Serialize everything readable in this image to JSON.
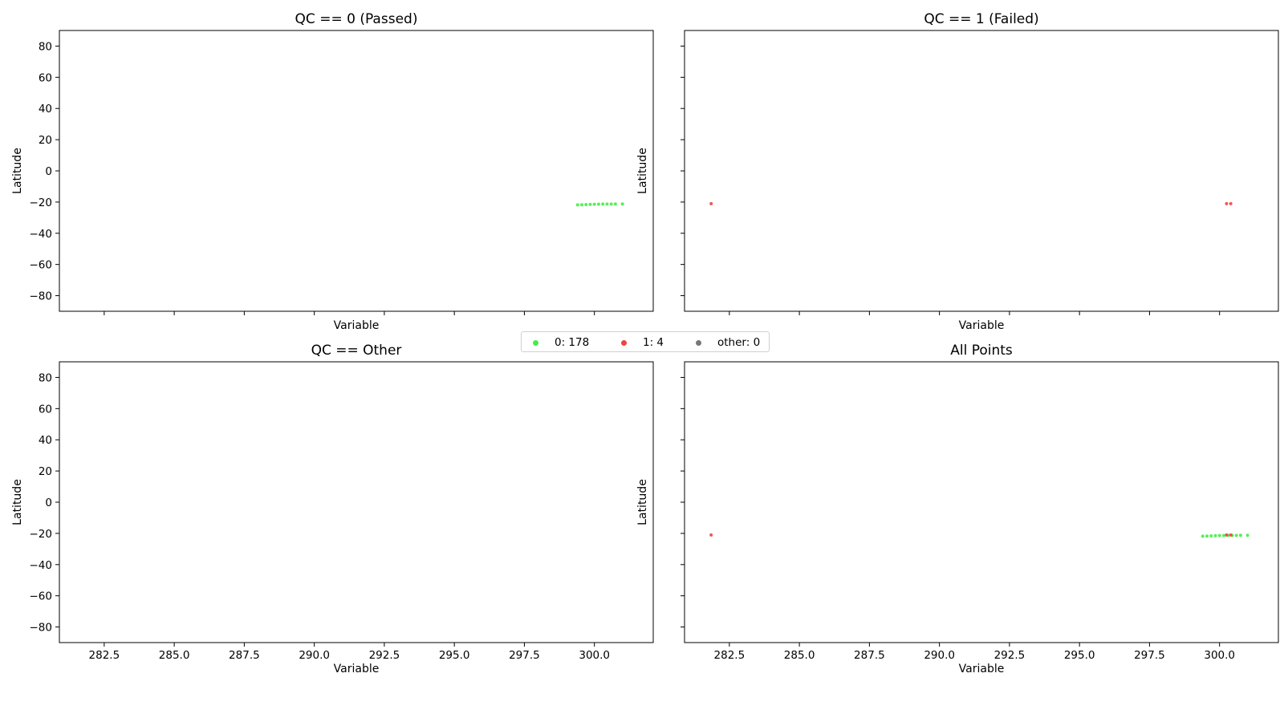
{
  "chart_data": [
    {
      "type": "scatter",
      "title": "QC == 0 (Passed)",
      "xlabel": "Variable",
      "ylabel": "Latitude",
      "xlim": [
        280.9,
        302.1
      ],
      "ylim": [
        -90,
        90
      ],
      "yticks": [
        "80",
        "60",
        "40",
        "20",
        "0",
        "−20",
        "−40",
        "−60",
        "−80"
      ],
      "xticks": [],
      "series": [
        {
          "color": "#44ee44",
          "x": [
            299.4,
            299.55,
            299.7,
            299.85,
            300.0,
            300.15,
            300.3,
            300.45,
            300.6,
            300.75,
            301.0
          ],
          "y": [
            -21.8,
            -21.7,
            -21.6,
            -21.5,
            -21.4,
            -21.35,
            -21.3,
            -21.3,
            -21.25,
            -21.2,
            -21.2
          ]
        }
      ]
    },
    {
      "type": "scatter",
      "title": "QC == 1 (Failed)",
      "xlabel": "Variable",
      "ylabel": "Latitude",
      "xlim": [
        280.9,
        302.1
      ],
      "ylim": [
        -90,
        90
      ],
      "yticks": [],
      "xticks": [],
      "series": [
        {
          "color": "#ee4444",
          "x": [
            281.85,
            300.25,
            300.4
          ],
          "y": [
            -21.0,
            -21.0,
            -21.0
          ]
        }
      ]
    },
    {
      "type": "scatter",
      "title": "QC == Other",
      "xlabel": "Variable",
      "ylabel": "Latitude",
      "xlim": [
        280.9,
        302.1
      ],
      "ylim": [
        -90,
        90
      ],
      "yticks": [
        "80",
        "60",
        "40",
        "20",
        "0",
        "−20",
        "−40",
        "−60",
        "−80"
      ],
      "xticks": [
        "282.5",
        "285.0",
        "287.5",
        "290.0",
        "292.5",
        "295.0",
        "297.5",
        "300.0"
      ],
      "series": []
    },
    {
      "type": "scatter",
      "title": "All Points",
      "xlabel": "Variable",
      "ylabel": "Latitude",
      "xlim": [
        280.9,
        302.1
      ],
      "ylim": [
        -90,
        90
      ],
      "yticks": [],
      "xticks": [
        "282.5",
        "285.0",
        "287.5",
        "290.0",
        "292.5",
        "295.0",
        "297.5",
        "300.0"
      ],
      "series": [
        {
          "color": "#44ee44",
          "x": [
            299.4,
            299.55,
            299.7,
            299.85,
            300.0,
            300.15,
            300.3,
            300.45,
            300.6,
            300.75,
            301.0
          ],
          "y": [
            -21.8,
            -21.7,
            -21.6,
            -21.5,
            -21.4,
            -21.35,
            -21.3,
            -21.3,
            -21.25,
            -21.2,
            -21.2
          ]
        },
        {
          "color": "#ee4444",
          "x": [
            281.85,
            300.25,
            300.4
          ],
          "y": [
            -21.0,
            -21.0,
            -21.0
          ]
        }
      ]
    }
  ],
  "legend": {
    "items": [
      {
        "label": "0: 178",
        "color": "#44ee44"
      },
      {
        "label": "1: 4",
        "color": "#ee4444"
      },
      {
        "label": "other: 0",
        "color": "#777777"
      }
    ]
  }
}
